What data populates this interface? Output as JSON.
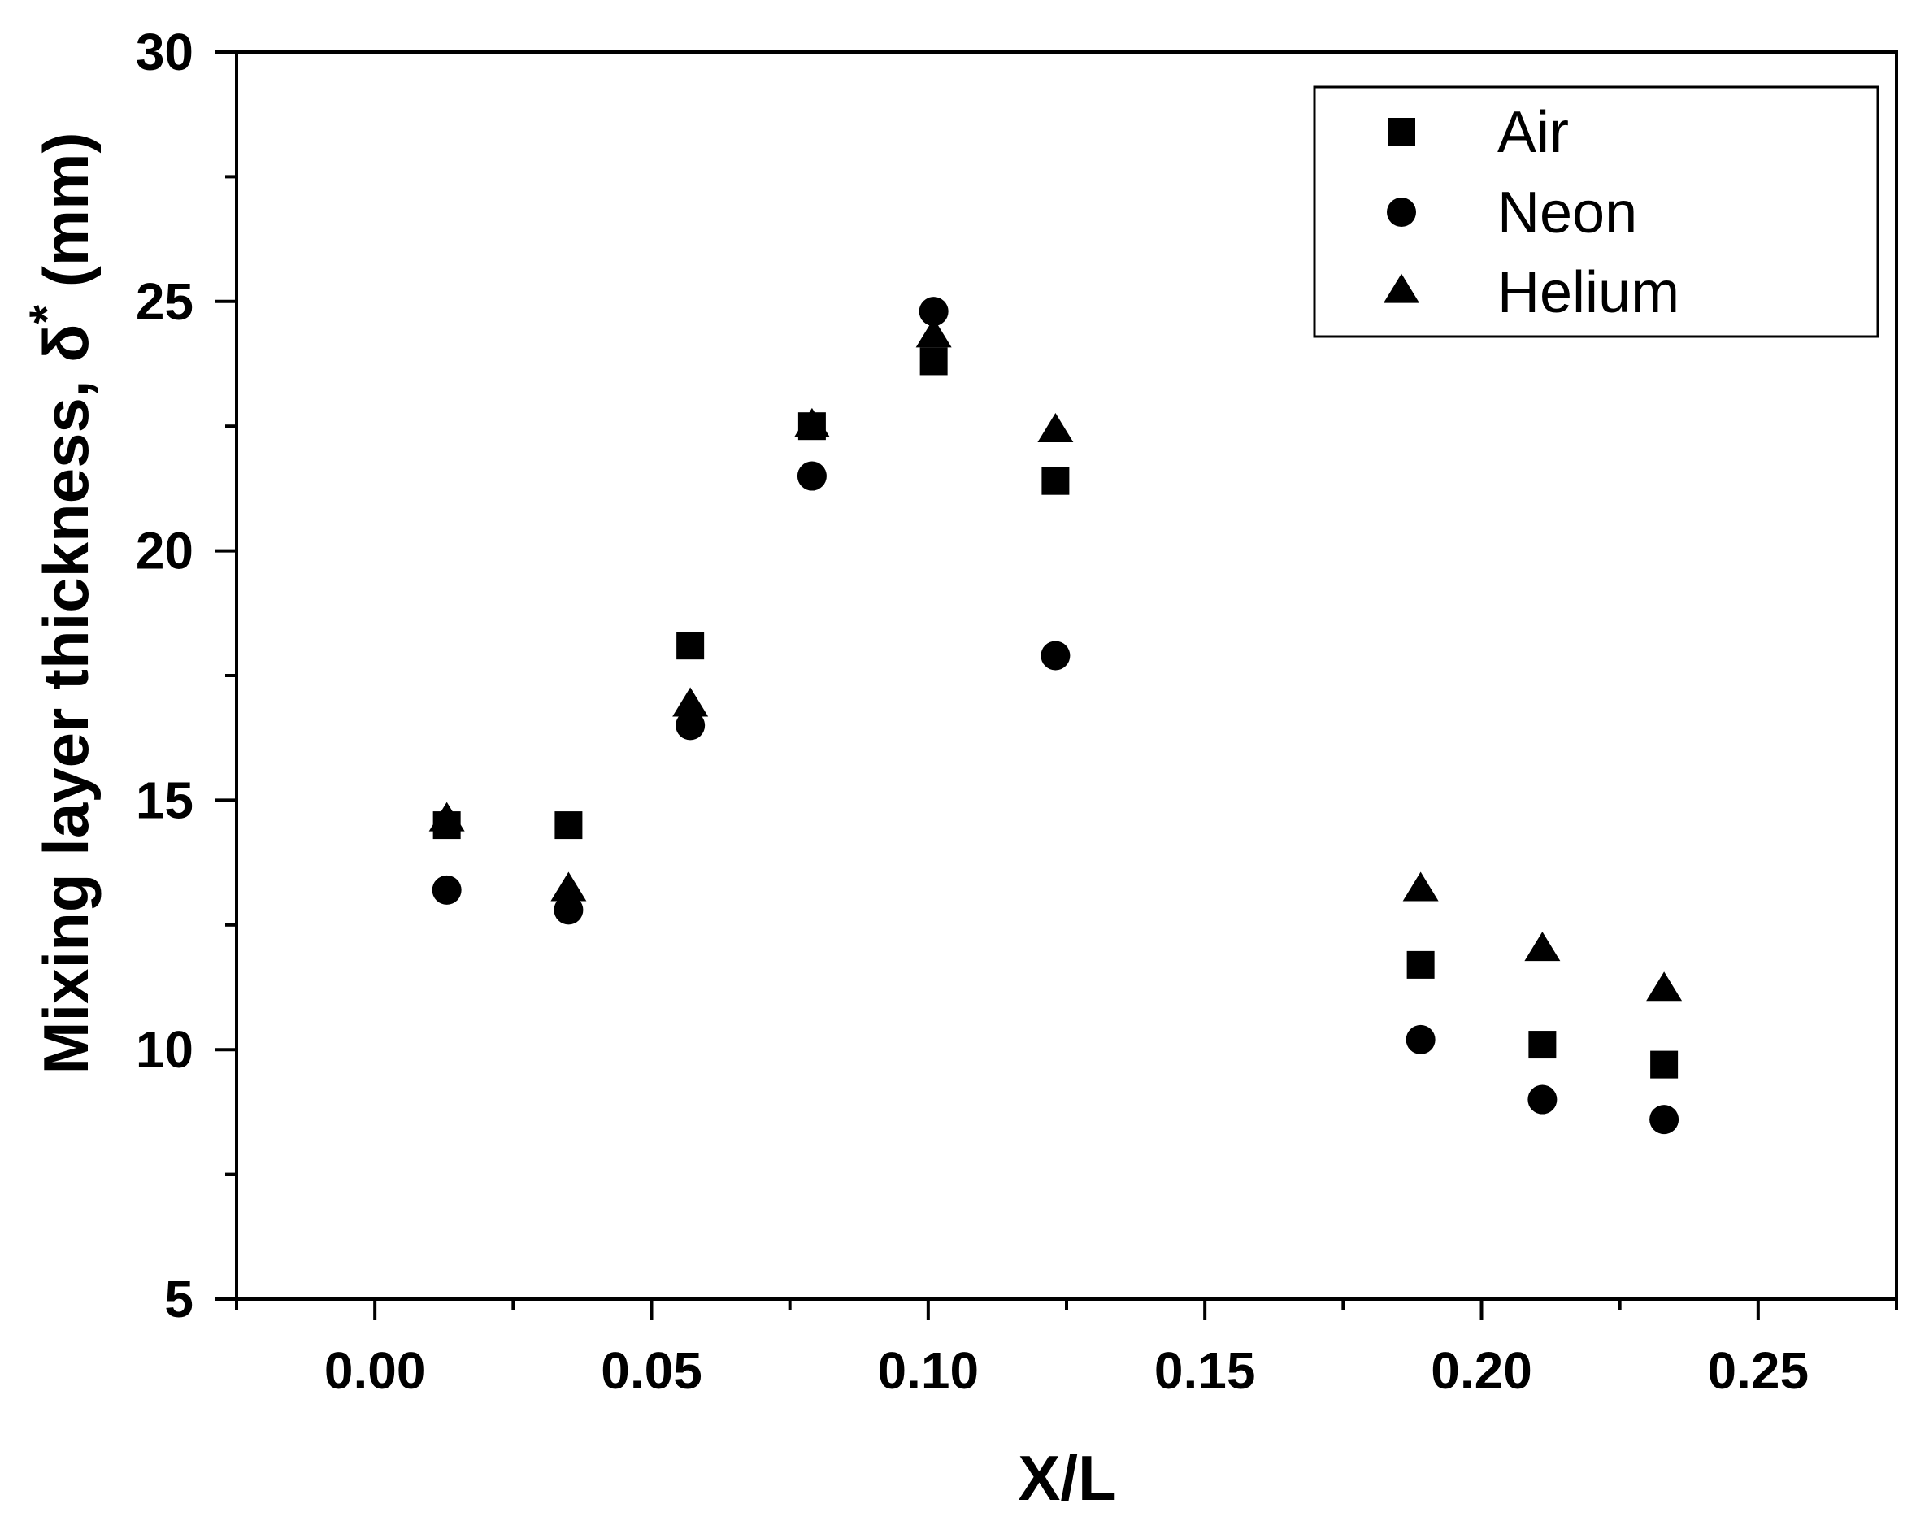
{
  "chart_data": {
    "type": "scatter",
    "xlabel": "X/L",
    "ylabel": "Mixing layer thickness, δ",
    "ylabel_superscript": "*",
    "ylabel_unit": "(mm)",
    "xlim": [
      -0.025,
      0.275
    ],
    "ylim": [
      5,
      30
    ],
    "x_ticks": [
      0.0,
      0.05,
      0.1,
      0.15,
      0.2,
      0.25
    ],
    "x_tick_labels": [
      "0.00",
      "0.05",
      "0.10",
      "0.15",
      "0.20",
      "0.25"
    ],
    "x_minor_ticks": [
      -0.025,
      0.025,
      0.075,
      0.125,
      0.175,
      0.225,
      0.275
    ],
    "y_ticks": [
      5,
      10,
      15,
      20,
      25,
      30
    ],
    "y_tick_labels": [
      "5",
      "10",
      "15",
      "20",
      "25",
      "30"
    ],
    "y_minor_ticks": [
      7.5,
      12.5,
      17.5,
      22.5,
      27.5
    ],
    "grid": false,
    "legend_position": "top-right",
    "series": [
      {
        "name": "Air",
        "marker": "square",
        "color": "#000000",
        "points": [
          {
            "x": 0.013,
            "y": 14.5
          },
          {
            "x": 0.035,
            "y": 14.5
          },
          {
            "x": 0.057,
            "y": 18.1
          },
          {
            "x": 0.079,
            "y": 22.5
          },
          {
            "x": 0.101,
            "y": 23.8
          },
          {
            "x": 0.123,
            "y": 21.4
          },
          {
            "x": 0.189,
            "y": 11.7
          },
          {
            "x": 0.211,
            "y": 10.1
          },
          {
            "x": 0.233,
            "y": 9.7
          }
        ]
      },
      {
        "name": "Neon",
        "marker": "circle",
        "color": "#000000",
        "points": [
          {
            "x": 0.013,
            "y": 13.2
          },
          {
            "x": 0.035,
            "y": 12.8
          },
          {
            "x": 0.057,
            "y": 16.5
          },
          {
            "x": 0.079,
            "y": 21.5
          },
          {
            "x": 0.101,
            "y": 24.8
          },
          {
            "x": 0.123,
            "y": 17.9
          },
          {
            "x": 0.189,
            "y": 10.2
          },
          {
            "x": 0.211,
            "y": 9.0
          },
          {
            "x": 0.233,
            "y": 8.6
          }
        ]
      },
      {
        "name": "Helium",
        "marker": "triangle",
        "color": "#000000",
        "points": [
          {
            "x": 0.013,
            "y": 14.6
          },
          {
            "x": 0.035,
            "y": 13.2
          },
          {
            "x": 0.057,
            "y": 16.9
          },
          {
            "x": 0.079,
            "y": 22.5
          },
          {
            "x": 0.101,
            "y": 24.3
          },
          {
            "x": 0.123,
            "y": 22.4
          },
          {
            "x": 0.189,
            "y": 13.2
          },
          {
            "x": 0.211,
            "y": 12.0
          },
          {
            "x": 0.233,
            "y": 11.2
          }
        ]
      }
    ]
  }
}
